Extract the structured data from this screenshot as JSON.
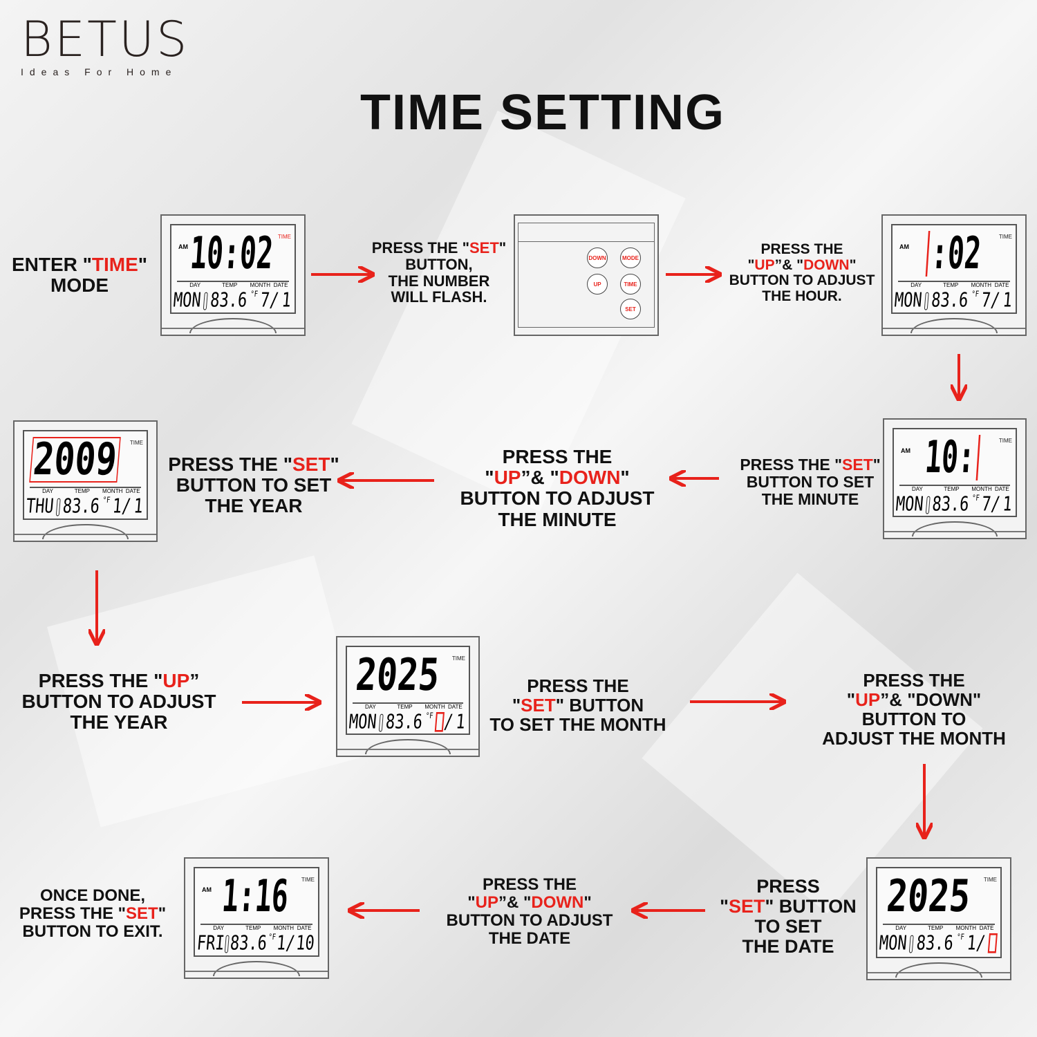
{
  "logo": {
    "brand": "BETUS",
    "tagline": "Ideas For Home"
  },
  "title": "TIME SETTING",
  "colors": {
    "accent": "#e8221b",
    "text": "#111111"
  },
  "instructions": [
    {
      "id": "enter-time-mode",
      "lines": [
        [
          {
            "t": "ENTER \""
          },
          {
            "t": "TIME",
            "red": true
          },
          {
            "t": "\""
          }
        ],
        [
          {
            "t": "MODE"
          }
        ]
      ]
    },
    {
      "id": "press-set-flash",
      "lines": [
        [
          {
            "t": "PRESS THE \""
          },
          {
            "t": "SET",
            "red": true
          },
          {
            "t": "\""
          }
        ],
        [
          {
            "t": "BUTTON,"
          }
        ],
        [
          {
            "t": "THE NUMBER"
          }
        ],
        [
          {
            "t": "WILL FLASH."
          }
        ]
      ]
    },
    {
      "id": "adjust-hour",
      "lines": [
        [
          {
            "t": "PRESS THE"
          }
        ],
        [
          {
            "t": "\""
          },
          {
            "t": "UP",
            "red": true
          },
          {
            "t": "”& \""
          },
          {
            "t": "DOWN",
            "red": true
          },
          {
            "t": "\""
          }
        ],
        [
          {
            "t": "BUTTON TO ADJUST"
          }
        ],
        [
          {
            "t": "THE HOUR."
          }
        ]
      ]
    },
    {
      "id": "set-minute",
      "lines": [
        [
          {
            "t": "PRESS THE \""
          },
          {
            "t": "SET",
            "red": true
          },
          {
            "t": "\""
          }
        ],
        [
          {
            "t": "BUTTON TO SET"
          }
        ],
        [
          {
            "t": "THE MINUTE"
          }
        ]
      ]
    },
    {
      "id": "adjust-minute",
      "lines": [
        [
          {
            "t": "PRESS THE"
          }
        ],
        [
          {
            "t": "\""
          },
          {
            "t": "UP",
            "red": true
          },
          {
            "t": "”& \""
          },
          {
            "t": "DOWN",
            "red": true
          },
          {
            "t": "\""
          }
        ],
        [
          {
            "t": "BUTTON TO ADJUST"
          }
        ],
        [
          {
            "t": "THE MINUTE"
          }
        ]
      ]
    },
    {
      "id": "set-year",
      "lines": [
        [
          {
            "t": "PRESS THE \""
          },
          {
            "t": "SET",
            "red": true
          },
          {
            "t": "\""
          }
        ],
        [
          {
            "t": "BUTTON TO SET"
          }
        ],
        [
          {
            "t": "THE YEAR"
          }
        ]
      ]
    },
    {
      "id": "adjust-year",
      "lines": [
        [
          {
            "t": "PRESS THE \""
          },
          {
            "t": "UP",
            "red": true
          },
          {
            "t": "”"
          }
        ],
        [
          {
            "t": "BUTTON TO ADJUST"
          }
        ],
        [
          {
            "t": "THE YEAR"
          }
        ]
      ]
    },
    {
      "id": "set-month",
      "lines": [
        [
          {
            "t": "PRESS THE"
          }
        ],
        [
          {
            "t": "\""
          },
          {
            "t": "SET",
            "red": true
          },
          {
            "t": "\" BUTTON"
          }
        ],
        [
          {
            "t": "TO SET THE MONTH"
          }
        ]
      ]
    },
    {
      "id": "adjust-month",
      "lines": [
        [
          {
            "t": "PRESS THE"
          }
        ],
        [
          {
            "t": "\""
          },
          {
            "t": "UP",
            "red": true
          },
          {
            "t": "”& \"DOWN\""
          }
        ],
        [
          {
            "t": "BUTTON TO"
          }
        ],
        [
          {
            "t": "ADJUST THE MONTH"
          }
        ]
      ]
    },
    {
      "id": "set-date",
      "lines": [
        [
          {
            "t": "PRESS"
          }
        ],
        [
          {
            "t": "\""
          },
          {
            "t": "SET",
            "red": true
          },
          {
            "t": "\" BUTTON"
          }
        ],
        [
          {
            "t": "TO SET"
          }
        ],
        [
          {
            "t": "THE DATE"
          }
        ]
      ]
    },
    {
      "id": "adjust-date",
      "lines": [
        [
          {
            "t": "PRESS THE"
          }
        ],
        [
          {
            "t": "\""
          },
          {
            "t": "UP",
            "red": true
          },
          {
            "t": "”& \""
          },
          {
            "t": "DOWN",
            "red": true
          },
          {
            "t": "\""
          }
        ],
        [
          {
            "t": "BUTTON TO ADJUST"
          }
        ],
        [
          {
            "t": "THE DATE"
          }
        ]
      ]
    },
    {
      "id": "exit",
      "lines": [
        [
          {
            "t": "ONCE DONE,"
          }
        ],
        [
          {
            "t": "PRESS THE \""
          },
          {
            "t": "SET",
            "red": true
          },
          {
            "t": "\""
          }
        ],
        [
          {
            "t": "BUTTON TO EXIT."
          }
        ]
      ]
    }
  ],
  "clock_labels": {
    "am": "AM",
    "time": "TIME",
    "day": "DAY",
    "temp": "TEMP",
    "month": "MONTH",
    "date": "DATE",
    "unit": "°F"
  },
  "clocks": [
    {
      "id": "initial",
      "am": true,
      "time_red": true,
      "main": [
        {
          "t": "10:02"
        }
      ],
      "day": "MON",
      "temp": "83.6",
      "month": "7",
      "date": "1"
    },
    {
      "id": "hour-flash",
      "am": true,
      "main": [
        {
          "box": true
        },
        {
          "t": ":02"
        }
      ],
      "day": "MON",
      "temp": "83.6",
      "month": "7",
      "date": "1"
    },
    {
      "id": "minute-flash",
      "am": true,
      "main": [
        {
          "t": "10:"
        },
        {
          "box": true
        }
      ],
      "day": "MON",
      "temp": "83.6",
      "month": "7",
      "date": "1"
    },
    {
      "id": "year-flash",
      "year": true,
      "main": [
        {
          "t": "2009",
          "boxed": true
        }
      ],
      "day": "THU",
      "temp": "83.6",
      "month": "1",
      "date": "1"
    },
    {
      "id": "month-flash",
      "year": true,
      "main": [
        {
          "t": "2025"
        }
      ],
      "day": "MON",
      "temp": "83.6",
      "month_box": true,
      "date": "1"
    },
    {
      "id": "date-flash",
      "year": true,
      "main": [
        {
          "t": "2025"
        }
      ],
      "day": "MON",
      "temp": "83.6",
      "month": "1",
      "date_box": true
    },
    {
      "id": "done",
      "am": true,
      "main": [
        {
          "t": "1:16"
        }
      ],
      "day": "FRI",
      "temp": "83.6",
      "month": "1",
      "date": "10"
    }
  ],
  "back_panel": {
    "buttons": [
      "DOWN",
      "MODE",
      "UP",
      "TIME",
      "SET"
    ]
  }
}
